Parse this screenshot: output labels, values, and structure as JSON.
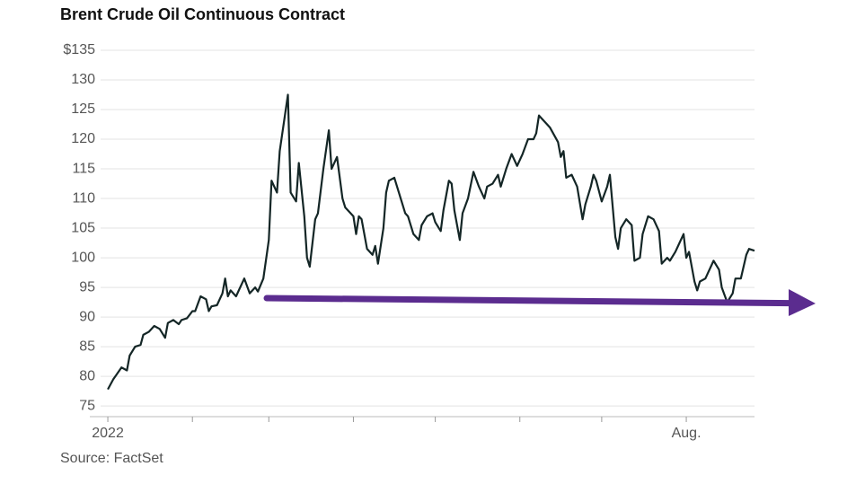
{
  "chart_data": {
    "type": "line",
    "title": "Brent Crude Oil Continuous Contract",
    "source": "Source: FactSet",
    "color": "#142626",
    "grid": true,
    "x": [
      0,
      2,
      5,
      7,
      8,
      10,
      12,
      13,
      15,
      17,
      19,
      21,
      22,
      24,
      26,
      27,
      29,
      31,
      32,
      34,
      36,
      37,
      38,
      40,
      42,
      43,
      44,
      45,
      47,
      48,
      50,
      52,
      54,
      55,
      57,
      59,
      60,
      62,
      63,
      66,
      67,
      69,
      70,
      72,
      73,
      74,
      76,
      77,
      79,
      81,
      82,
      84,
      86,
      87,
      90,
      91,
      92,
      93,
      95,
      97,
      98,
      99,
      101,
      102,
      103,
      105,
      106,
      109,
      110,
      112,
      114,
      115,
      117,
      119,
      120,
      122,
      123,
      125,
      126,
      127,
      129,
      130,
      132,
      134,
      136,
      138,
      139,
      141,
      143,
      144,
      146,
      148,
      150,
      152,
      154,
      156,
      157,
      158,
      160,
      162,
      165,
      166,
      167,
      168,
      170,
      172,
      174,
      175,
      177,
      178,
      179,
      181,
      183,
      184,
      186,
      187,
      188,
      190,
      192,
      193,
      195,
      196,
      198,
      200,
      202,
      203,
      205,
      206,
      208,
      209,
      211,
      212,
      213,
      215,
      216,
      217,
      219,
      220,
      222,
      224,
      225,
      227,
      229,
      230,
      232,
      234,
      235,
      237
    ],
    "values": [
      77.8,
      79.5,
      81.5,
      81,
      83.5,
      85,
      85.3,
      87,
      87.5,
      88.5,
      88,
      86.5,
      89,
      89.5,
      88.8,
      89.5,
      89.8,
      91,
      91,
      93.5,
      93,
      91,
      91.8,
      92,
      94,
      96.5,
      93.5,
      94.5,
      93.5,
      94.5,
      96.5,
      94,
      95,
      94.3,
      96.5,
      103,
      113,
      111,
      118,
      127.5,
      111,
      109.5,
      116,
      107,
      100,
      98.5,
      106.5,
      107.5,
      115,
      121.5,
      115,
      117,
      110,
      108.5,
      107,
      104,
      107,
      106.5,
      101.5,
      100.5,
      102,
      99,
      105,
      111,
      113,
      113.5,
      112,
      107.5,
      107,
      104,
      103,
      105.5,
      107,
      107.5,
      106,
      104.5,
      108,
      113,
      112.5,
      108,
      103,
      107.5,
      110,
      114.5,
      112,
      110,
      112,
      112.5,
      114,
      112,
      115,
      117.5,
      115.5,
      117.5,
      120,
      120,
      121,
      124,
      123,
      122,
      119.5,
      117,
      118,
      113.5,
      114,
      112,
      106.5,
      109,
      112,
      114,
      113,
      109.5,
      112,
      114,
      103.5,
      101.5,
      105,
      106.5,
      105.5,
      99.5,
      100,
      104,
      107,
      106.5,
      104.5,
      99,
      100,
      99.5,
      101,
      102,
      104,
      100,
      101,
      96,
      94.5,
      96,
      96.5,
      97.5,
      99.5,
      98,
      95,
      92.5,
      94,
      96.5,
      96.5,
      100.5,
      101.5,
      101.2
    ],
    "xlim": [
      -6.6,
      237
    ],
    "xticks": [
      {
        "value": 0,
        "label": "2022"
      },
      {
        "value": 31
      },
      {
        "value": 59
      },
      {
        "value": 90
      },
      {
        "value": 120
      },
      {
        "value": 151
      },
      {
        "value": 181
      },
      {
        "value": 212,
        "label": "Aug."
      }
    ],
    "ylim": [
      73.2,
      135
    ],
    "yticks": [
      {
        "value": 135,
        "label": "$135"
      },
      130,
      125,
      120,
      115,
      110,
      105,
      100,
      95,
      90,
      85,
      80,
      75
    ]
  }
}
